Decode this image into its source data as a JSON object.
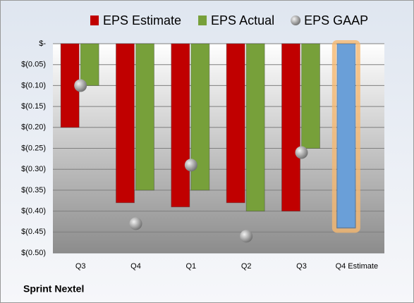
{
  "chart_data": {
    "type": "bar",
    "title": "Sprint Nextel",
    "categories": [
      "Q3",
      "Q4",
      "Q1",
      "Q2",
      "Q3",
      "Q4 Estimate"
    ],
    "series": [
      {
        "name": "EPS Estimate",
        "color": "#c00000",
        "colors": [
          "#c00000",
          "#c00000",
          "#c00000",
          "#c00000",
          "#c00000",
          "#6a9fd8"
        ],
        "values": [
          -0.2,
          -0.38,
          -0.39,
          -0.38,
          -0.4,
          -0.44
        ]
      },
      {
        "name": "EPS Actual",
        "color": "#77a03a",
        "values": [
          -0.1,
          -0.35,
          -0.35,
          -0.4,
          -0.25,
          null
        ]
      },
      {
        "name": "EPS GAAP",
        "color": "#a0a0a0",
        "type": "scatter",
        "values": [
          -0.1,
          -0.43,
          -0.29,
          -0.46,
          -0.26,
          null
        ]
      }
    ],
    "ylim": [
      -0.5,
      0
    ],
    "yticks": [
      {
        "value": 0,
        "label": "$-"
      },
      {
        "value": -0.05,
        "label": "$(0.05)"
      },
      {
        "value": -0.1,
        "label": "$(0.10)"
      },
      {
        "value": -0.15,
        "label": "$(0.15)"
      },
      {
        "value": -0.2,
        "label": "$(0.20)"
      },
      {
        "value": -0.25,
        "label": "$(0.25)"
      },
      {
        "value": -0.3,
        "label": "$(0.30)"
      },
      {
        "value": -0.35,
        "label": "$(0.35)"
      },
      {
        "value": -0.4,
        "label": "$(0.40)"
      },
      {
        "value": -0.45,
        "label": "$(0.45)"
      },
      {
        "value": -0.5,
        "label": "$(0.50)"
      }
    ],
    "grid": true,
    "legend": "top"
  }
}
